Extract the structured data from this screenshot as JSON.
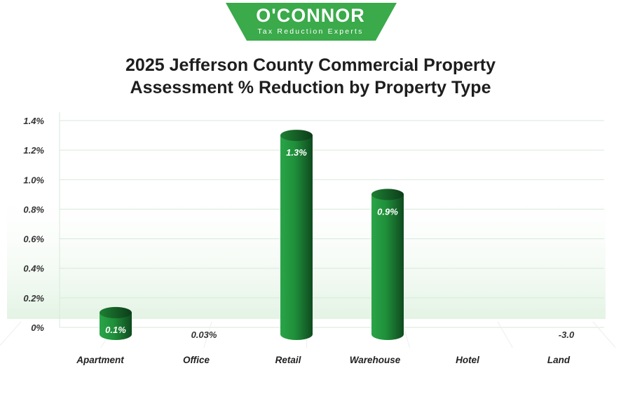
{
  "brand": {
    "name": "O'CONNOR",
    "tagline": "Tax Reduction Experts",
    "color": "#3aaa4a"
  },
  "chart_data": {
    "type": "bar",
    "title_lines": [
      "2025 Jefferson County Commercial Property",
      "Assessment % Reduction by Property Type"
    ],
    "categories": [
      "Apartment",
      "Office",
      "Retail",
      "Warehouse",
      "Hotel",
      "Land"
    ],
    "values": [
      0.1,
      0.03,
      1.3,
      0.9,
      0,
      -3.0
    ],
    "data_labels": [
      "0.1%",
      "0.03%",
      "1.3%",
      "0.9%",
      "",
      "-3.0"
    ],
    "ylim": [
      0,
      1.4
    ],
    "yticks": [
      0,
      0.2,
      0.4,
      0.6,
      0.8,
      1.0,
      1.2,
      1.4
    ],
    "ytick_labels": [
      "0%",
      "0.2%",
      "0.4%",
      "0.6%",
      "0.8%",
      "1.0%",
      "1.2%",
      "1.4%"
    ],
    "xlabel": "",
    "ylabel": "",
    "grid": true,
    "legend": "none",
    "bar_color": "#1f8f3a",
    "grid_color": "#d6ead9"
  }
}
